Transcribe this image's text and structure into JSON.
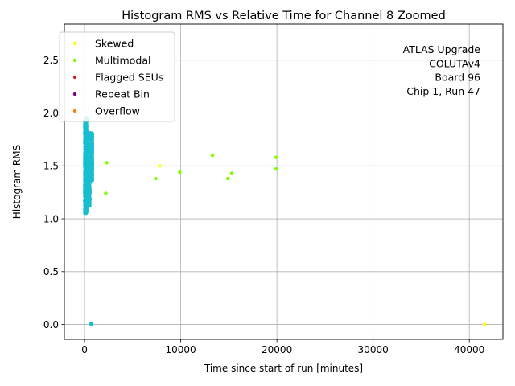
{
  "chart_data": {
    "type": "scatter",
    "title": "Histogram RMS vs Relative Time for Channel 8 Zoomed",
    "xlabel": "Time since start of run [minutes]",
    "ylabel": "Histogram RMS",
    "xlim": [
      -2100,
      43500
    ],
    "ylim": [
      -0.14,
      2.84
    ],
    "xticks": [
      0,
      10000,
      20000,
      30000,
      40000
    ],
    "xtick_labels": [
      "0",
      "10000",
      "20000",
      "30000",
      "40000"
    ],
    "yticks": [
      0.0,
      0.5,
      1.0,
      1.5,
      2.0,
      2.5
    ],
    "ytick_labels": [
      "0.0",
      "0.5",
      "1.0",
      "1.5",
      "2.0",
      "2.5"
    ],
    "grid": true,
    "legend_placement": "upper-left",
    "annotation_lines": [
      "ATLAS Upgrade",
      "COLUTAv4",
      "Board 96",
      "Chip 1, Run 47"
    ],
    "series": [
      {
        "name": "Skewed",
        "color": "#ffff00",
        "points": [
          [
            7800,
            1.5
          ],
          [
            41600,
            0.0
          ]
        ]
      },
      {
        "name": "Multimodal",
        "color": "#7fff00",
        "points": [
          [
            2300,
            1.53
          ],
          [
            2200,
            1.24
          ],
          [
            7400,
            1.38
          ],
          [
            9900,
            1.44
          ],
          [
            13300,
            1.6
          ],
          [
            14900,
            1.38
          ],
          [
            15300,
            1.43
          ],
          [
            19900,
            1.58
          ],
          [
            19900,
            1.47
          ]
        ]
      },
      {
        "name": "Flagged SEUs",
        "color": "#d62728",
        "points": []
      },
      {
        "name": "Repeat Bin",
        "color": "#800080",
        "points": []
      },
      {
        "name": "Overflow",
        "color": "#ff7f0e",
        "points": []
      },
      {
        "name": "",
        "color": "#17becf",
        "points": [
          [
            700,
            0.0
          ],
          [
            750,
            0.0
          ],
          [
            680,
            0.01
          ]
        ]
      }
    ],
    "dense_clusters": [
      {
        "color": "#17becf",
        "x_range": [
          0,
          250
        ],
        "y_range": [
          1.05,
          1.96
        ]
      },
      {
        "color": "#17becf",
        "x_range": [
          250,
          580
        ],
        "y_range": [
          1.12,
          1.82
        ]
      },
      {
        "color": "#17becf",
        "x_range": [
          580,
          840
        ],
        "y_range": [
          1.36,
          1.81
        ]
      }
    ]
  }
}
